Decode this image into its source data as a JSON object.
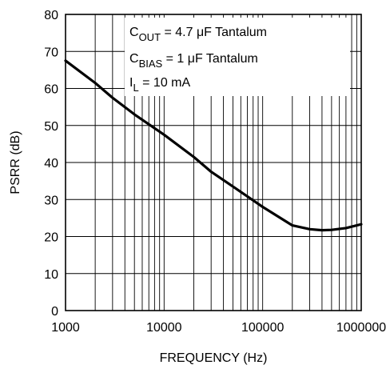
{
  "chart_data": {
    "type": "line",
    "xscale": "log",
    "xlim": [
      1000,
      1000000
    ],
    "ylim": [
      0,
      80
    ],
    "xlabel": "FREQUENCY (Hz)",
    "ylabel": "PSRR (dB)",
    "grid": true,
    "xticks": [
      "1000",
      "10000",
      "100000",
      "1000000"
    ],
    "yticks": [
      "0",
      "10",
      "20",
      "30",
      "40",
      "50",
      "60",
      "70",
      "80"
    ],
    "annotations": [
      {
        "main": "C",
        "sub": "OUT",
        "rest": " = 4.7 μF Tantalum"
      },
      {
        "main": "C",
        "sub": "BIAS",
        "rest": " = 1 μF Tantalum"
      },
      {
        "main": "I",
        "sub": "L",
        "rest": " = 10 mA"
      }
    ],
    "series": [
      {
        "x": [
          1000,
          2000,
          3000,
          5000,
          10000,
          20000,
          30000,
          50000,
          100000,
          200000,
          300000,
          400000,
          500000,
          700000,
          1000000
        ],
        "y": [
          67.5,
          61.5,
          57.5,
          53,
          47.5,
          41.5,
          37.5,
          33.5,
          28,
          23,
          22,
          21.7,
          21.8,
          22.3,
          23.3
        ]
      }
    ]
  }
}
